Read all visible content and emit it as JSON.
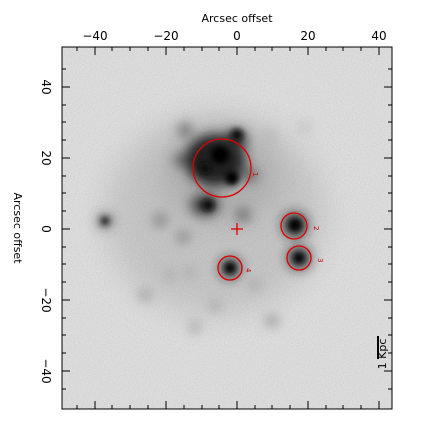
{
  "figure": {
    "top_axis_title": "Arcsec offset",
    "left_axis_title": "Arcsec offset",
    "x_tick_labels": [
      "−40",
      "−20",
      "0",
      "20",
      "40"
    ],
    "y_tick_labels": [
      "40",
      "20",
      "0",
      "−20",
      "−40"
    ],
    "scale_bar_label": "1 Kpc",
    "region_labels": [
      "1",
      "2",
      "3",
      "4"
    ],
    "colors": {
      "image_background": "#e6e6e6",
      "annotation": "#dd0000"
    }
  }
}
